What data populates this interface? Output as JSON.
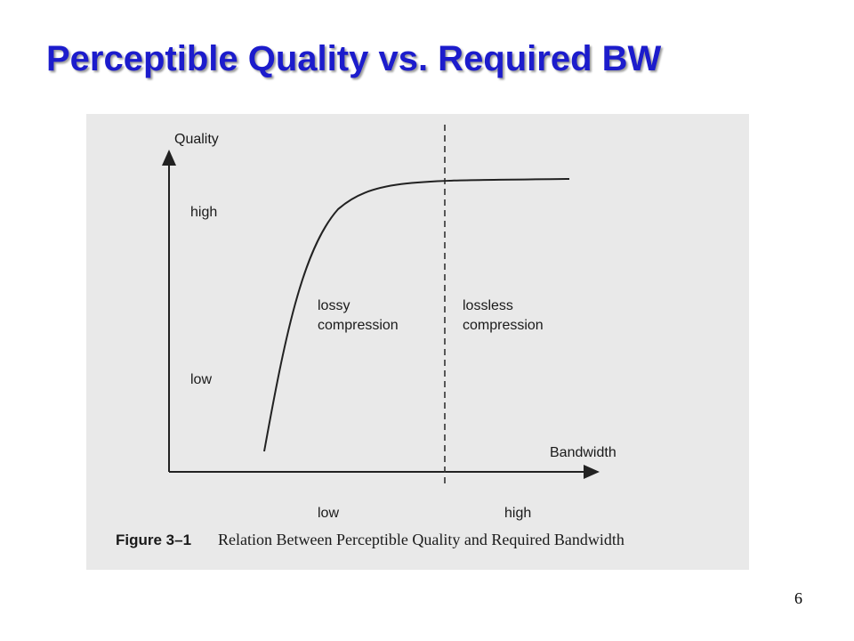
{
  "title": "Perceptible Quality vs. Required BW",
  "figure": {
    "y_axis": {
      "label": "Quality",
      "high": "high",
      "low": "low"
    },
    "x_axis": {
      "label": "Bandwidth",
      "low": "low",
      "high": "high"
    },
    "regions": [
      {
        "lines": [
          "lossy",
          "compression"
        ]
      },
      {
        "lines": [
          "lossless",
          "compression"
        ]
      }
    ],
    "caption": {
      "label": "Figure 3–1",
      "text": "Relation Between Perceptible Quality and Required Bandwidth"
    }
  },
  "page_number": "6"
}
